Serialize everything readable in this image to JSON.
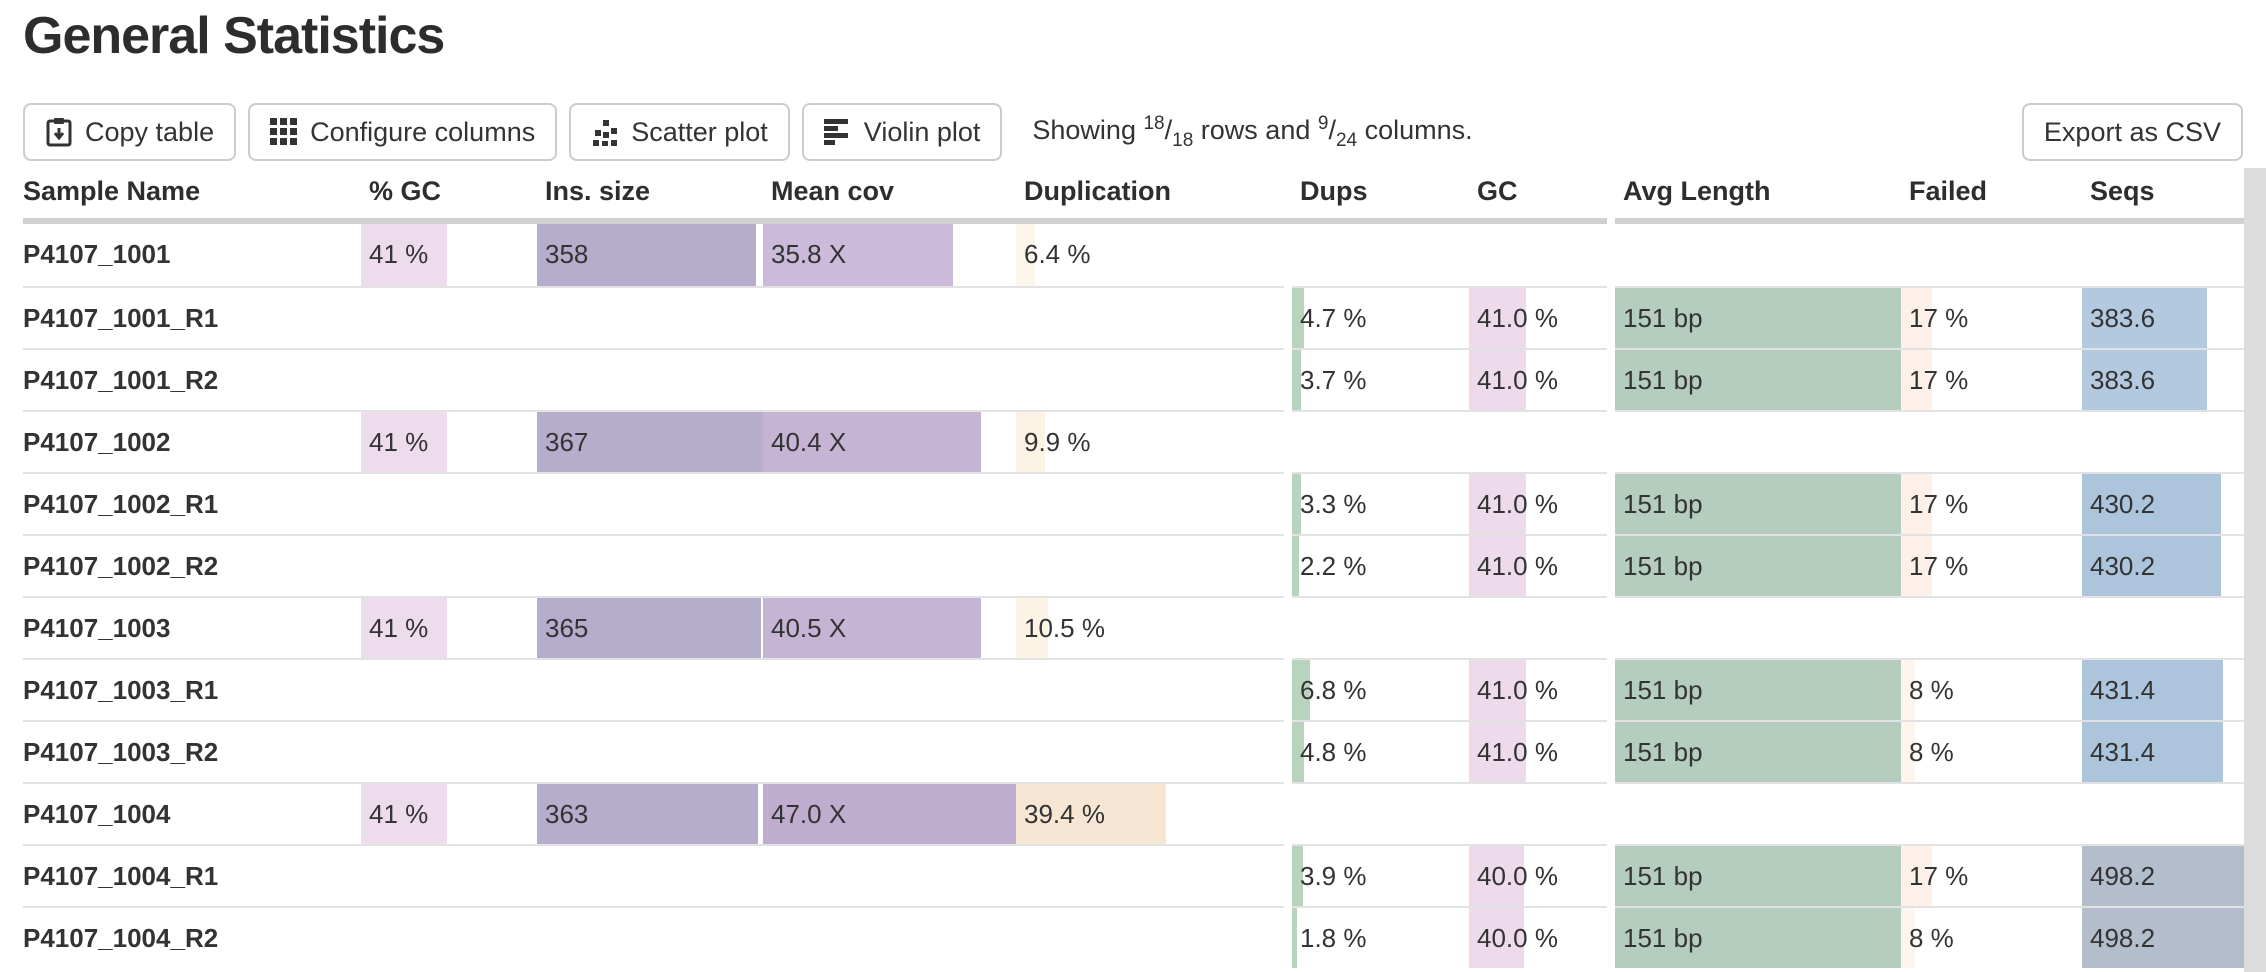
{
  "page": {
    "title": "General Statistics"
  },
  "toolbar": {
    "buttons": [
      {
        "label": "Copy table",
        "icon": "clipboard-icon"
      },
      {
        "label": "Configure columns",
        "icon": "grid-icon"
      },
      {
        "label": "Scatter plot",
        "icon": "scatter-plot-icon"
      },
      {
        "label": "Violin plot",
        "icon": "violin-plot-icon"
      }
    ],
    "showing": {
      "word_showing": "Showing",
      "rows_shown": "18",
      "rows_total": "18",
      "word_rows": "rows and",
      "cols_shown": "9",
      "cols_total": "24",
      "word_columns": "columns."
    },
    "export_label": "Export as CSV"
  },
  "table": {
    "columns": [
      {
        "label": "Sample Name"
      },
      {
        "label": "% GC"
      },
      {
        "label": "Ins. size"
      },
      {
        "label": "Mean cov"
      },
      {
        "label": "Duplication"
      },
      {
        "label": "Dups"
      },
      {
        "label": "GC"
      },
      {
        "label": "Avg Length"
      },
      {
        "label": "Failed"
      },
      {
        "label": "Seqs"
      }
    ],
    "rows": [
      {
        "sample": "P4107_1001",
        "cells": [
          {
            "text": "41 %",
            "width_pct": 49,
            "color": "#eddcec"
          },
          {
            "text": "358",
            "width_pct": 97,
            "color": "#b5adcb"
          },
          {
            "text": "35.8 X",
            "width_pct": 75,
            "color": "#cbbada"
          },
          {
            "text": "6.4 %",
            "width_pct": 7,
            "color": "#fdf6ea"
          },
          null,
          null,
          null,
          null,
          null
        ]
      },
      {
        "sample": "P4107_1001_R1",
        "cells": [
          null,
          null,
          null,
          null,
          {
            "text": "4.7 %",
            "width_pct": 7,
            "color": "#b8d4bd"
          },
          {
            "text": "41.0 %",
            "width_pct": 41,
            "color": "#eddaeb"
          },
          {
            "text": "151 bp",
            "width_pct": 100,
            "color": "#b5cdbf"
          },
          {
            "text": "17 %",
            "width_pct": 17,
            "color": "#fcf0e9"
          },
          {
            "text": "383.6",
            "width_pct": 77,
            "color": "#b3c9e0"
          }
        ]
      },
      {
        "sample": "P4107_1001_R2",
        "cells": [
          null,
          null,
          null,
          null,
          {
            "text": "3.7 %",
            "width_pct": 5,
            "color": "#b8d4bd"
          },
          {
            "text": "41.0 %",
            "width_pct": 41,
            "color": "#eddaeb"
          },
          {
            "text": "151 bp",
            "width_pct": 100,
            "color": "#b5cdbf"
          },
          {
            "text": "17 %",
            "width_pct": 17,
            "color": "#fcf0e9"
          },
          {
            "text": "383.6",
            "width_pct": 77,
            "color": "#b3c9e0"
          }
        ]
      },
      {
        "sample": "P4107_1002",
        "cells": [
          {
            "text": "41 %",
            "width_pct": 49,
            "color": "#eddcec"
          },
          {
            "text": "367",
            "width_pct": 100,
            "color": "#b5adcb"
          },
          {
            "text": "40.4 X",
            "width_pct": 86,
            "color": "#c6b4d5"
          },
          {
            "text": "9.9 %",
            "width_pct": 11,
            "color": "#fcf3e4"
          },
          null,
          null,
          null,
          null,
          null
        ]
      },
      {
        "sample": "P4107_1002_R1",
        "cells": [
          null,
          null,
          null,
          null,
          {
            "text": "3.3 %",
            "width_pct": 5,
            "color": "#b8d4bd"
          },
          {
            "text": "41.0 %",
            "width_pct": 41,
            "color": "#eddaeb"
          },
          {
            "text": "151 bp",
            "width_pct": 100,
            "color": "#b5cdbf"
          },
          {
            "text": "17 %",
            "width_pct": 17,
            "color": "#fcf0e9"
          },
          {
            "text": "430.2",
            "width_pct": 86,
            "color": "#adc4dd"
          }
        ]
      },
      {
        "sample": "P4107_1002_R2",
        "cells": [
          null,
          null,
          null,
          null,
          {
            "text": "2.2 %",
            "width_pct": 4,
            "color": "#b8d4bd"
          },
          {
            "text": "41.0 %",
            "width_pct": 41,
            "color": "#eddaeb"
          },
          {
            "text": "151 bp",
            "width_pct": 100,
            "color": "#b5cdbf"
          },
          {
            "text": "17 %",
            "width_pct": 17,
            "color": "#fcf0e9"
          },
          {
            "text": "430.2",
            "width_pct": 86,
            "color": "#adc4dd"
          }
        ]
      },
      {
        "sample": "P4107_1003",
        "cells": [
          {
            "text": "41 %",
            "width_pct": 49,
            "color": "#eddcec"
          },
          {
            "text": "365",
            "width_pct": 99,
            "color": "#b5adcb"
          },
          {
            "text": "40.5 X",
            "width_pct": 86,
            "color": "#c6b4d5"
          },
          {
            "text": "10.5 %",
            "width_pct": 12,
            "color": "#fcf3e4"
          },
          null,
          null,
          null,
          null,
          null
        ]
      },
      {
        "sample": "P4107_1003_R1",
        "cells": [
          null,
          null,
          null,
          null,
          {
            "text": "6.8 %",
            "width_pct": 10,
            "color": "#b8d4bd"
          },
          {
            "text": "41.0 %",
            "width_pct": 41,
            "color": "#eddaeb"
          },
          {
            "text": "151 bp",
            "width_pct": 100,
            "color": "#b5cdbf"
          },
          {
            "text": "8 %",
            "width_pct": 8,
            "color": "#fdf5ee"
          },
          {
            "text": "431.4",
            "width_pct": 87,
            "color": "#adc4dd"
          }
        ]
      },
      {
        "sample": "P4107_1003_R2",
        "cells": [
          null,
          null,
          null,
          null,
          {
            "text": "4.8 %",
            "width_pct": 7,
            "color": "#b8d4bd"
          },
          {
            "text": "41.0 %",
            "width_pct": 41,
            "color": "#eddaeb"
          },
          {
            "text": "151 bp",
            "width_pct": 100,
            "color": "#b5cdbf"
          },
          {
            "text": "8 %",
            "width_pct": 8,
            "color": "#fdf5ee"
          },
          {
            "text": "431.4",
            "width_pct": 87,
            "color": "#adc4dd"
          }
        ]
      },
      {
        "sample": "P4107_1004",
        "cells": [
          {
            "text": "41 %",
            "width_pct": 49,
            "color": "#eddcec"
          },
          {
            "text": "363",
            "width_pct": 98,
            "color": "#b5adcb"
          },
          {
            "text": "47.0 X",
            "width_pct": 100,
            "color": "#bfadd0"
          },
          {
            "text": "39.4 %",
            "width_pct": 56,
            "color": "#f7e6d3"
          },
          null,
          null,
          null,
          null,
          null
        ]
      },
      {
        "sample": "P4107_1004_R1",
        "cells": [
          null,
          null,
          null,
          null,
          {
            "text": "3.9 %",
            "width_pct": 6,
            "color": "#b8d4bd"
          },
          {
            "text": "40.0 %",
            "width_pct": 40,
            "color": "#eddaeb"
          },
          {
            "text": "151 bp",
            "width_pct": 100,
            "color": "#b5cdbf"
          },
          {
            "text": "17 %",
            "width_pct": 17,
            "color": "#fcf0e9"
          },
          {
            "text": "498.2",
            "width_pct": 100,
            "color": "#b4bdcc"
          }
        ]
      },
      {
        "sample": "P4107_1004_R2",
        "cells": [
          null,
          null,
          null,
          null,
          {
            "text": "1.8 %",
            "width_pct": 3,
            "color": "#b8d4bd"
          },
          {
            "text": "40.0 %",
            "width_pct": 40,
            "color": "#eddaeb"
          },
          {
            "text": "151 bp",
            "width_pct": 100,
            "color": "#b5cdbf"
          },
          {
            "text": "8 %",
            "width_pct": 8,
            "color": "#fdf5ee"
          },
          {
            "text": "498.2",
            "width_pct": 100,
            "color": "#b4bdcc"
          }
        ]
      }
    ]
  }
}
